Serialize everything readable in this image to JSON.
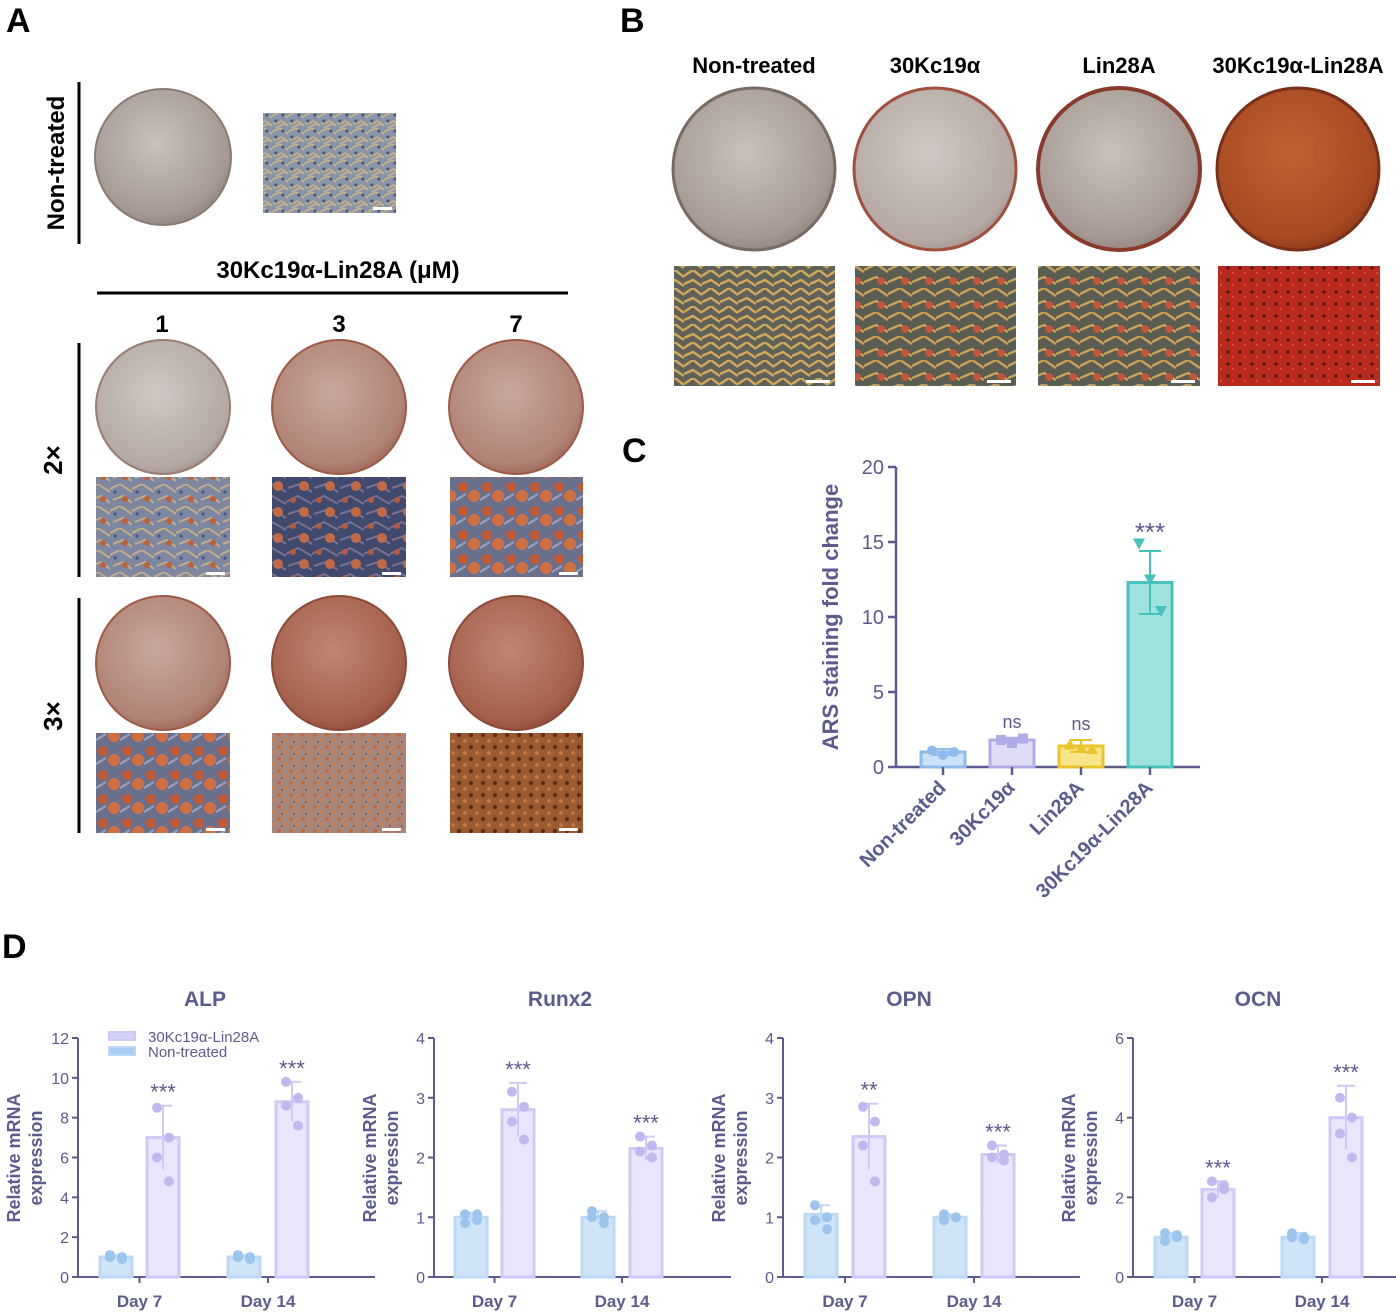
{
  "panels": {
    "A": {
      "letter": "A",
      "row_label_top": "Non-treated",
      "concentration_header": "30Kc19α-Lin28A (μM)",
      "columns": [
        "1",
        "3",
        "7"
      ],
      "row_labels": [
        "2×",
        "3×"
      ]
    },
    "B": {
      "letter": "B",
      "columns": [
        "Non-treated",
        "30Kc19α",
        "Lin28A",
        "30Kc19α-Lin28A"
      ]
    },
    "C": {
      "letter": "C"
    },
    "D": {
      "letter": "D"
    }
  },
  "colors": {
    "axis": "#5b5b8f",
    "non_treated": "#a9cdf2",
    "kc19": "#c9c4f0",
    "lin28a": "#f2d43a",
    "fusion": "#5dcfc8",
    "fusion_light": "#d4d2f7",
    "dish_rim": "#a0503c"
  },
  "chart_data": [
    {
      "type": "bar",
      "panel": "C",
      "categories": [
        "Non-treated",
        "30Kc19α",
        "Lin28A",
        "30Kc19α-Lin28A"
      ],
      "values": [
        1.0,
        1.8,
        1.4,
        12.3
      ],
      "errors": [
        0.2,
        0.15,
        0.4,
        2.1
      ],
      "points": [
        [
          1.1,
          0.8,
          1.0
        ],
        [
          1.8,
          1.6,
          1.9
        ],
        [
          1.5,
          1.3,
          1.2
        ],
        [
          14.9,
          12.5,
          10.4
        ]
      ],
      "significance": [
        "",
        "ns",
        "ns",
        "***"
      ],
      "ylabel": "ARS staining fold change",
      "ylim": [
        0,
        20
      ],
      "yticks": [
        0,
        5,
        10,
        15,
        20
      ],
      "grid": false
    },
    {
      "type": "bar",
      "panel": "D",
      "title": "ALP",
      "categories": [
        "Day 7",
        "Day 14"
      ],
      "series": [
        {
          "name": "Non-treated",
          "values": [
            1.0,
            1.0
          ],
          "errors": [
            0.1,
            0.1
          ],
          "points": [
            [
              1.1,
              0.9,
              1.0,
              1.0
            ],
            [
              1.1,
              0.9,
              1.0,
              1.0
            ]
          ]
        },
        {
          "name": "30Kc19α-Lin28A",
          "values": [
            7.0,
            8.8
          ],
          "errors": [
            1.6,
            1.0
          ],
          "points": [
            [
              8.5,
              7.0,
              6.0,
              4.8
            ],
            [
              9.8,
              9.0,
              8.6,
              7.6
            ]
          ]
        }
      ],
      "significance": [
        "***",
        "***"
      ],
      "ylabel": "Relative mRNA expression",
      "ylim": [
        0,
        12
      ],
      "yticks": [
        0,
        2,
        4,
        6,
        8,
        10,
        12
      ],
      "legend": "top-left"
    },
    {
      "type": "bar",
      "panel": "D",
      "title": "Runx2",
      "categories": [
        "Day 7",
        "Day 14"
      ],
      "series": [
        {
          "name": "Non-treated",
          "values": [
            1.0,
            1.0
          ],
          "errors": [
            0.07,
            0.1
          ],
          "points": [
            [
              1.05,
              0.95,
              0.9,
              1.05
            ],
            [
              1.1,
              0.9,
              1.0,
              1.0
            ]
          ]
        },
        {
          "name": "30Kc19α-Lin28A",
          "values": [
            2.8,
            2.15
          ],
          "errors": [
            0.45,
            0.2
          ],
          "points": [
            [
              3.1,
              2.85,
              2.6,
              2.3
            ],
            [
              2.35,
              2.2,
              2.1,
              2.0
            ]
          ]
        }
      ],
      "significance": [
        "***",
        "***"
      ],
      "ylabel": "Relative mRNA expression",
      "ylim": [
        0,
        4
      ],
      "yticks": [
        0,
        1,
        2,
        3,
        4
      ]
    },
    {
      "type": "bar",
      "panel": "D",
      "title": "OPN",
      "categories": [
        "Day 7",
        "Day 14"
      ],
      "series": [
        {
          "name": "Non-treated",
          "values": [
            1.05,
            1.0
          ],
          "errors": [
            0.15,
            0.05
          ],
          "points": [
            [
              1.2,
              1.0,
              0.95,
              0.8
            ],
            [
              1.05,
              1.0,
              0.95,
              1.0
            ]
          ]
        },
        {
          "name": "30Kc19α-Lin28A",
          "values": [
            2.35,
            2.05
          ],
          "errors": [
            0.55,
            0.15
          ],
          "points": [
            [
              2.85,
              2.6,
              2.2,
              1.6
            ],
            [
              2.2,
              2.05,
              2.0,
              1.95
            ]
          ]
        }
      ],
      "significance": [
        "**",
        "***"
      ],
      "ylabel": "Relative mRNA expression",
      "ylim": [
        0,
        4
      ],
      "yticks": [
        0,
        1,
        2,
        3,
        4
      ]
    },
    {
      "type": "bar",
      "panel": "D",
      "title": "OCN",
      "categories": [
        "Day 7",
        "Day 14"
      ],
      "series": [
        {
          "name": "Non-treated",
          "values": [
            1.0,
            1.0
          ],
          "errors": [
            0.1,
            0.1
          ],
          "points": [
            [
              1.1,
              1.0,
              0.9,
              1.05
            ],
            [
              1.1,
              0.95,
              1.0,
              1.0
            ]
          ]
        },
        {
          "name": "30Kc19α-Lin28A",
          "values": [
            2.2,
            4.0
          ],
          "errors": [
            0.2,
            0.8
          ],
          "points": [
            [
              2.4,
              2.2,
              2.0,
              2.3
            ],
            [
              4.5,
              4.0,
              3.6,
              3.0
            ]
          ]
        }
      ],
      "significance": [
        "***",
        "***"
      ],
      "ylabel": "Relative mRNA expression",
      "ylim": [
        0,
        6
      ],
      "yticks": [
        0,
        2,
        4,
        6
      ]
    }
  ]
}
